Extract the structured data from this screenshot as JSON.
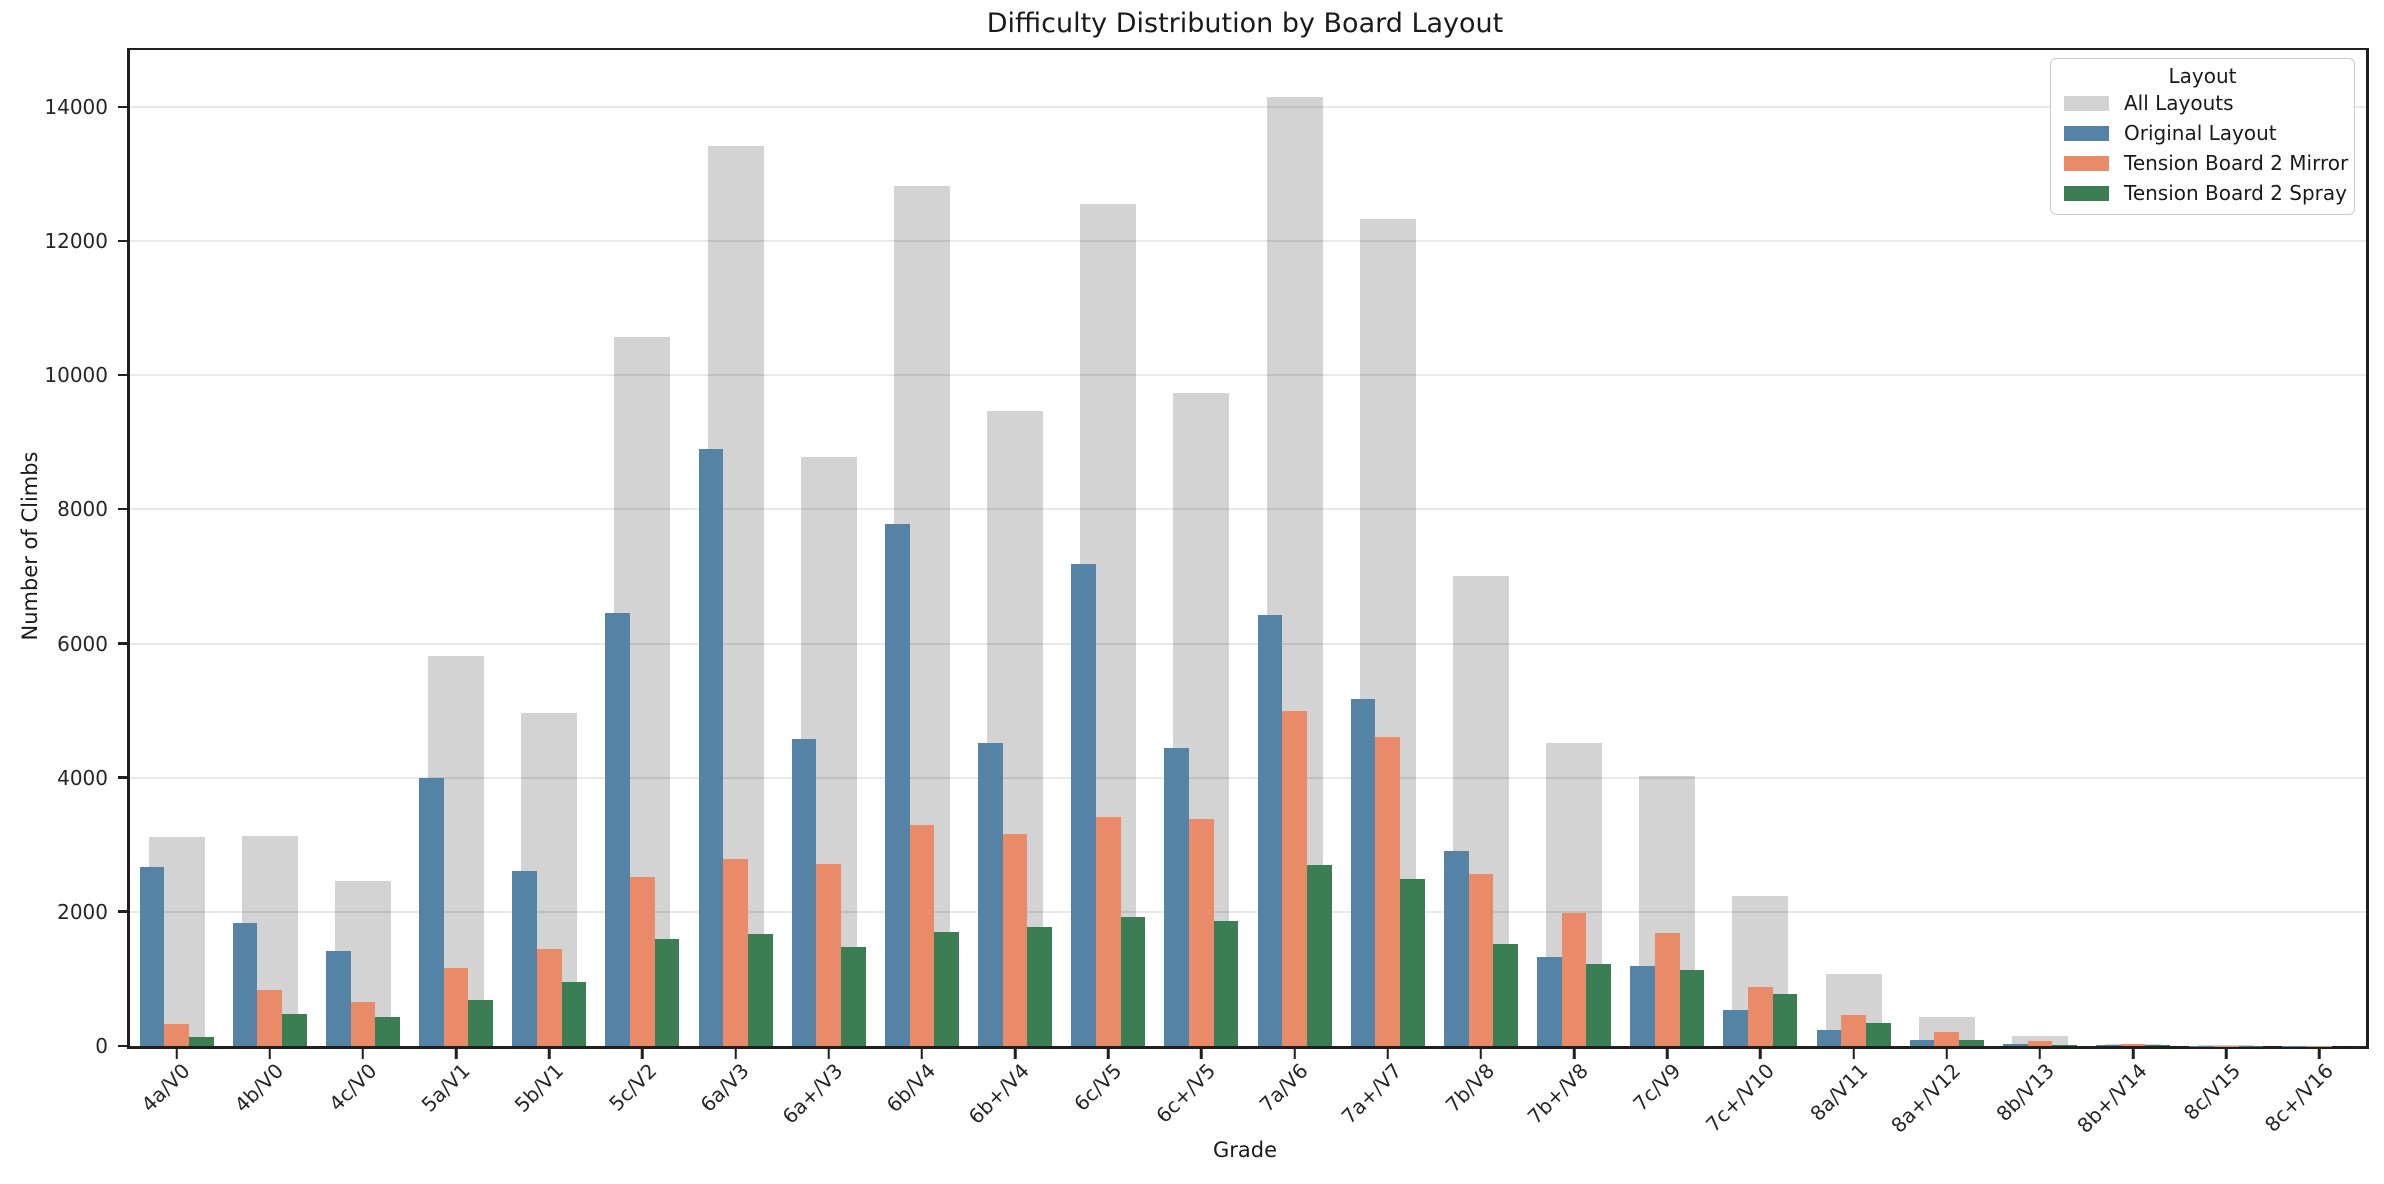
{
  "title": "Difficulty Distribution by Board Layout",
  "chart_data": {
    "type": "bar",
    "title": "Difficulty Distribution by Board Layout",
    "xlabel": "Grade",
    "ylabel": "Number of Climbs",
    "categories": [
      "4a/V0",
      "4b/V0",
      "4c/V0",
      "5a/V1",
      "5b/V1",
      "5c/V2",
      "6a/V3",
      "6a+/V3",
      "6b/V4",
      "6b+/V4",
      "6c/V5",
      "6c+/V5",
      "7a/V6",
      "7a+/V7",
      "7b/V8",
      "7b+/V8",
      "7c/V9",
      "7c+/V10",
      "8a/V11",
      "8a+/V12",
      "8b/V13",
      "8b+/V14",
      "8c/V15",
      "8c+/V16"
    ],
    "series": [
      {
        "name": "All Layouts",
        "color": "#d3d3d3",
        "values": [
          3110,
          3130,
          2460,
          5820,
          4970,
          10570,
          13420,
          8780,
          12820,
          9470,
          12560,
          9730,
          14150,
          12330,
          7010,
          4520,
          4030,
          2230,
          1080,
          430,
          150,
          30,
          10,
          6
        ]
      },
      {
        "name": "Original Layout",
        "color": "#5483a6",
        "values": [
          2670,
          1830,
          1410,
          4000,
          2610,
          6450,
          8900,
          4580,
          7790,
          4520,
          7190,
          4450,
          6420,
          5170,
          2910,
          1320,
          1200,
          530,
          240,
          90,
          25,
          8,
          3,
          2
        ]
      },
      {
        "name": "Tension Board 2 Mirror",
        "color": "#e98a68",
        "values": [
          330,
          840,
          660,
          1170,
          1450,
          2520,
          2790,
          2720,
          3300,
          3160,
          3410,
          3390,
          5000,
          4600,
          2570,
          1990,
          1680,
          880,
          460,
          215,
          80,
          25,
          5,
          3
        ]
      },
      {
        "name": "Tension Board 2 Spray",
        "color": "#3c7e54",
        "values": [
          130,
          470,
          430,
          680,
          950,
          1590,
          1670,
          1480,
          1700,
          1780,
          1930,
          1860,
          2700,
          2490,
          1520,
          1230,
          1140,
          780,
          350,
          90,
          20,
          8,
          2,
          1
        ]
      }
    ],
    "ylim": [
      0,
      14850
    ],
    "yticks": [
      0,
      2000,
      4000,
      6000,
      8000,
      10000,
      12000,
      14000
    ],
    "grid": true,
    "legend": {
      "title": "Layout",
      "position": "upper right"
    },
    "colors": {
      "background_bar": "#d3d3d3",
      "gridline": "#e9e9e9",
      "spine": "#1f1f1f"
    }
  }
}
